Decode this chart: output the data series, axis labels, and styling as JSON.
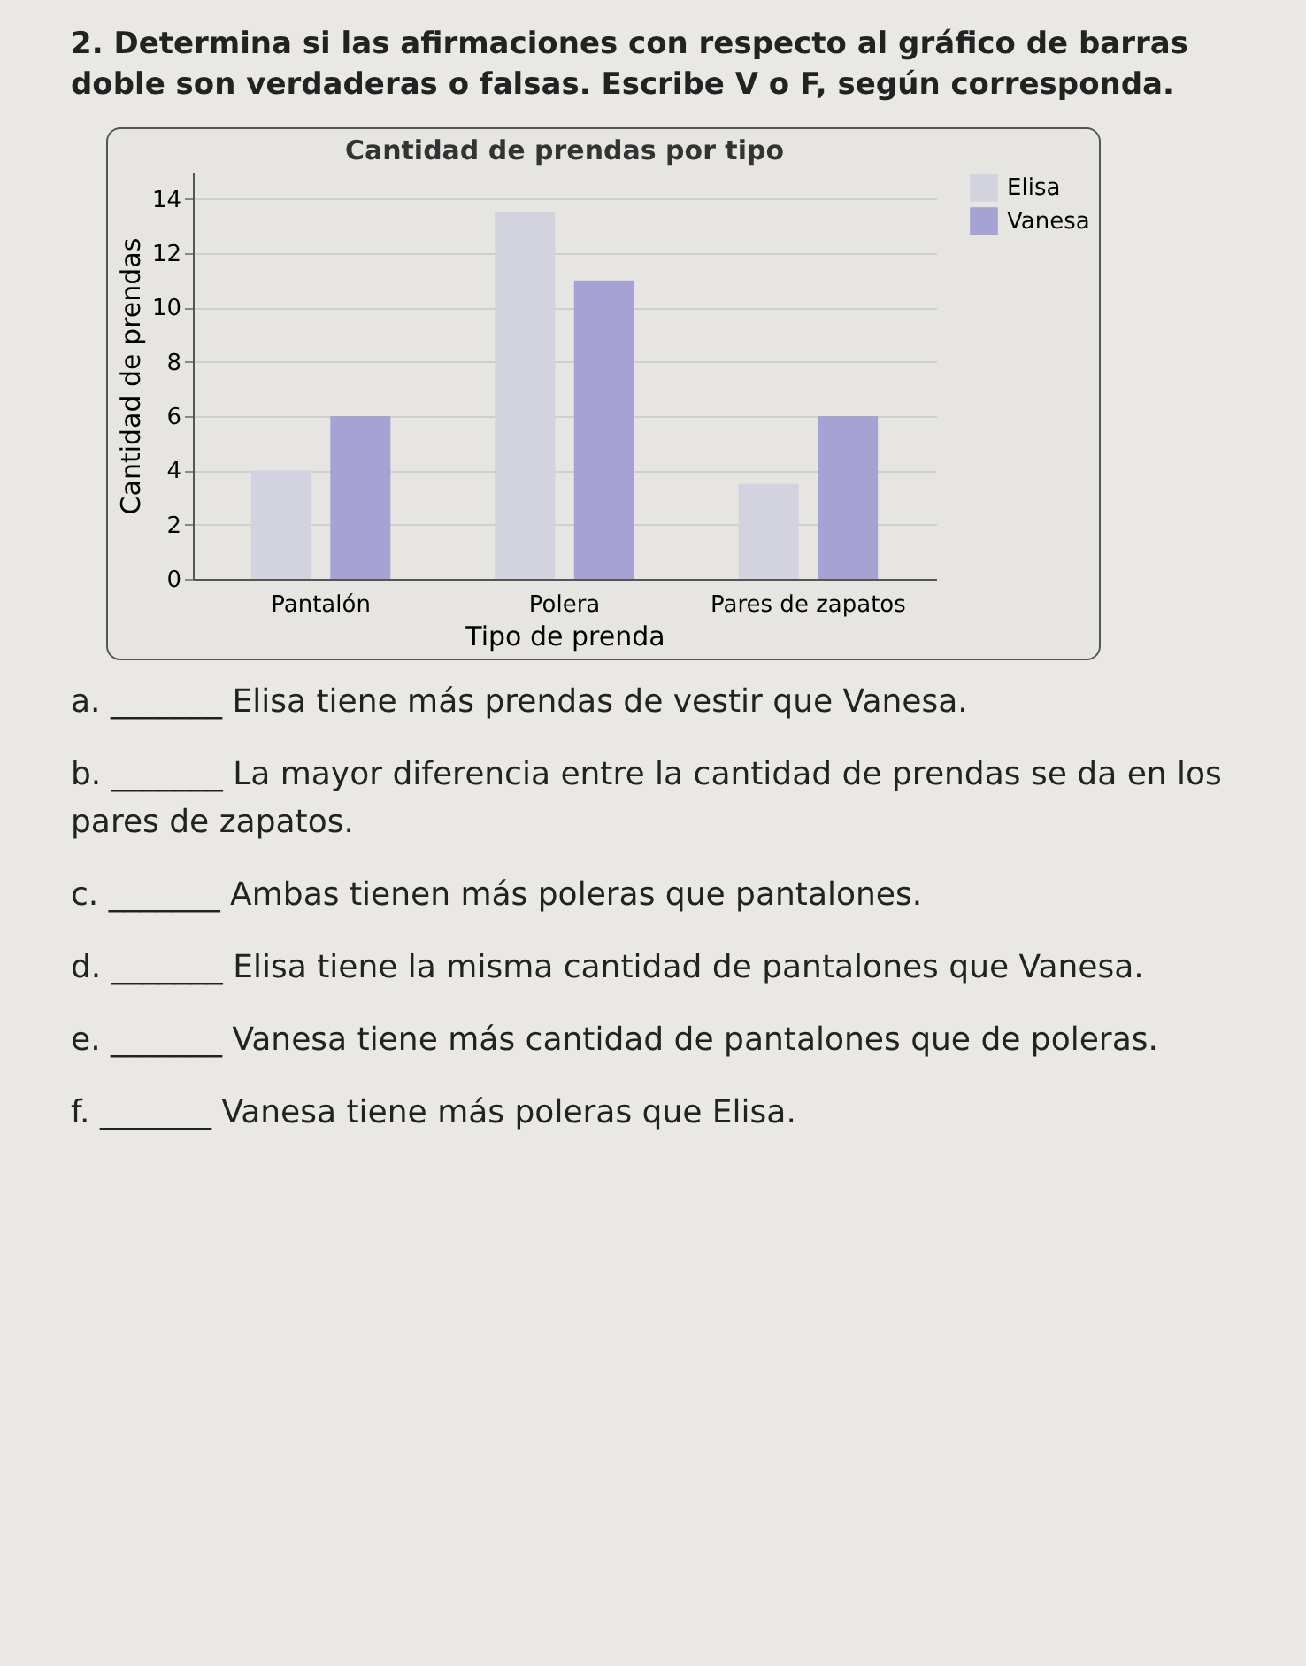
{
  "chart_data": {
    "type": "bar",
    "title": "Cantidad de prendas por tipo",
    "xlabel": "Tipo de prenda",
    "ylabel": "Cantidad de prendas",
    "categories": [
      "Pantalón",
      "Polera",
      "Pares de zapatos"
    ],
    "series": [
      {
        "name": "Elisa",
        "color": "#d3d3df",
        "values": [
          4,
          13.5,
          3.5
        ]
      },
      {
        "name": "Vanesa",
        "color": "#a6a3d4",
        "values": [
          6,
          11,
          6
        ]
      }
    ],
    "ylim": [
      0,
      15
    ],
    "yticks": [
      0,
      2,
      4,
      6,
      8,
      10,
      12,
      14
    ],
    "grid": "y",
    "legend": "top right",
    "annotations": [
      "2. Determina si las afirmaciones con respecto al gráfico de barras doble son verdaderas o falsas. Escribe V o F, según corresponda.",
      "a. _______ Elisa tiene más prendas de vestir que Vanesa.",
      "b. _______ La mayor diferencia entre la cantidad de prendas se da en los pares de zapatos.",
      "c. _______ Ambas tienen más poleras que pantalones.",
      "d. _______ Elisa tiene la misma cantidad de pantalones que Vanesa.",
      "e. _______ Vanesa tiene más cantidad de pantalones que de poleras.",
      "f. _______ Vanesa tiene más poleras que Elisa."
    ]
  }
}
